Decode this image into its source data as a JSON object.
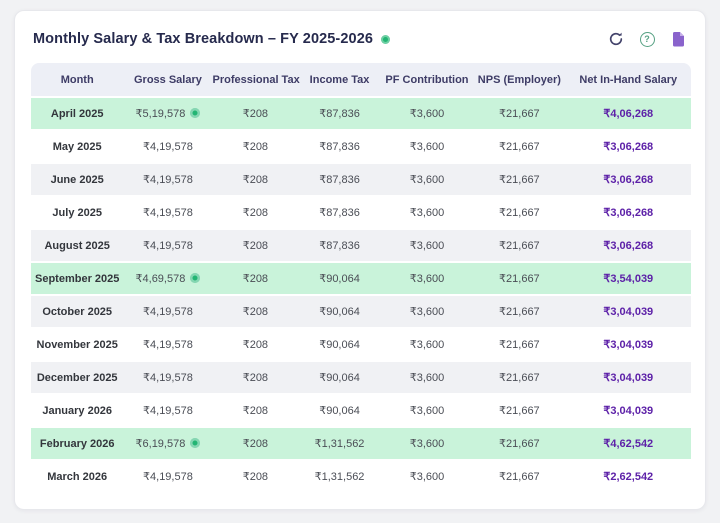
{
  "title": "Monthly Salary & Tax Breakdown – FY 2025-2026",
  "header": {
    "status_dot": "active-green",
    "actions": [
      {
        "name": "refresh",
        "icon": "refresh-icon"
      },
      {
        "name": "help",
        "icon": "help-icon",
        "glyph": "?"
      },
      {
        "name": "report",
        "icon": "document-icon"
      }
    ]
  },
  "table": {
    "columns": [
      "Month",
      "Gross Salary",
      "Professional Tax",
      "Income Tax",
      "PF Contribution",
      "NPS (Employer)",
      "Net In-Hand Salary"
    ],
    "rows": [
      {
        "month": "April 2025",
        "gross_salary": "₹5,19,578",
        "has_info": true,
        "professional_tax": "₹208",
        "income_tax": "₹87,836",
        "pf_contribution": "₹3,600",
        "nps_employer": "₹21,667",
        "net_in_hand": "₹4,06,268",
        "variant": "highlight"
      },
      {
        "month": "May 2025",
        "gross_salary": "₹4,19,578",
        "has_info": false,
        "professional_tax": "₹208",
        "income_tax": "₹87,836",
        "pf_contribution": "₹3,600",
        "nps_employer": "₹21,667",
        "net_in_hand": "₹3,06,268",
        "variant": "plain"
      },
      {
        "month": "June 2025",
        "gross_salary": "₹4,19,578",
        "has_info": false,
        "professional_tax": "₹208",
        "income_tax": "₹87,836",
        "pf_contribution": "₹3,600",
        "nps_employer": "₹21,667",
        "net_in_hand": "₹3,06,268",
        "variant": "stripe"
      },
      {
        "month": "July 2025",
        "gross_salary": "₹4,19,578",
        "has_info": false,
        "professional_tax": "₹208",
        "income_tax": "₹87,836",
        "pf_contribution": "₹3,600",
        "nps_employer": "₹21,667",
        "net_in_hand": "₹3,06,268",
        "variant": "plain"
      },
      {
        "month": "August 2025",
        "gross_salary": "₹4,19,578",
        "has_info": false,
        "professional_tax": "₹208",
        "income_tax": "₹87,836",
        "pf_contribution": "₹3,600",
        "nps_employer": "₹21,667",
        "net_in_hand": "₹3,06,268",
        "variant": "stripe"
      },
      {
        "month": "September 2025",
        "gross_salary": "₹4,69,578",
        "has_info": true,
        "professional_tax": "₹208",
        "income_tax": "₹90,064",
        "pf_contribution": "₹3,600",
        "nps_employer": "₹21,667",
        "net_in_hand": "₹3,54,039",
        "variant": "highlight"
      },
      {
        "month": "October 2025",
        "gross_salary": "₹4,19,578",
        "has_info": false,
        "professional_tax": "₹208",
        "income_tax": "₹90,064",
        "pf_contribution": "₹3,600",
        "nps_employer": "₹21,667",
        "net_in_hand": "₹3,04,039",
        "variant": "stripe"
      },
      {
        "month": "November 2025",
        "gross_salary": "₹4,19,578",
        "has_info": false,
        "professional_tax": "₹208",
        "income_tax": "₹90,064",
        "pf_contribution": "₹3,600",
        "nps_employer": "₹21,667",
        "net_in_hand": "₹3,04,039",
        "variant": "plain"
      },
      {
        "month": "December 2025",
        "gross_salary": "₹4,19,578",
        "has_info": false,
        "professional_tax": "₹208",
        "income_tax": "₹90,064",
        "pf_contribution": "₹3,600",
        "nps_employer": "₹21,667",
        "net_in_hand": "₹3,04,039",
        "variant": "stripe"
      },
      {
        "month": "January 2026",
        "gross_salary": "₹4,19,578",
        "has_info": false,
        "professional_tax": "₹208",
        "income_tax": "₹90,064",
        "pf_contribution": "₹3,600",
        "nps_employer": "₹21,667",
        "net_in_hand": "₹3,04,039",
        "variant": "plain"
      },
      {
        "month": "February 2026",
        "gross_salary": "₹6,19,578",
        "has_info": true,
        "professional_tax": "₹208",
        "income_tax": "₹1,31,562",
        "pf_contribution": "₹3,600",
        "nps_employer": "₹21,667",
        "net_in_hand": "₹4,62,542",
        "variant": "highlight"
      },
      {
        "month": "March 2026",
        "gross_salary": "₹4,19,578",
        "has_info": false,
        "professional_tax": "₹208",
        "income_tax": "₹1,31,562",
        "pf_contribution": "₹3,600",
        "nps_employer": "₹21,667",
        "net_in_hand": "₹2,62,542",
        "variant": "plain"
      }
    ]
  },
  "colors": {
    "page_bg": "#f1f2f4",
    "card_bg": "#ffffff",
    "card_border": "#e7e8ec",
    "title_text": "#262a4d",
    "header_bg": "#edeff6",
    "header_text": "#3e3c66",
    "stripe_bg": "#f0f1f4",
    "highlight_bg": "#c9f3da",
    "month_text": "#33363c",
    "cell_text": "#4a4d55",
    "net_text": "#5d21a8",
    "green": "#22b573",
    "refresh_icon": "#43436b",
    "help_icon": "#56a183",
    "document_icon": "#8a63cc"
  }
}
